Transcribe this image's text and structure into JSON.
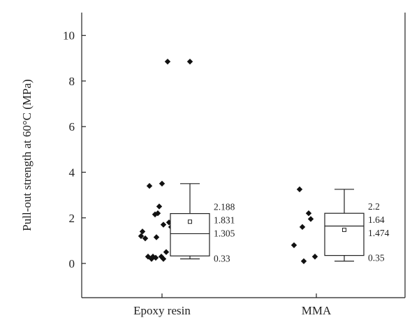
{
  "chart_data": {
    "type": "box",
    "title": "",
    "ylabel": "Pull-out strength at 60°C (MPa)",
    "xlabel": "",
    "ylim": [
      -1.5,
      11
    ],
    "yticks": [
      0,
      2,
      4,
      6,
      8,
      10
    ],
    "grid": false,
    "groups": [
      {
        "name": "Epoxy resin",
        "points": [
          [
            0.08,
            8.85
          ],
          [
            -0.3,
            1.2
          ],
          [
            -0.28,
            1.4
          ],
          [
            -0.24,
            1.1
          ],
          [
            -0.18,
            3.4
          ],
          [
            -0.2,
            0.3
          ],
          [
            -0.15,
            0.2
          ],
          [
            -0.13,
            0.3
          ],
          [
            -0.09,
            0.25
          ],
          [
            -0.1,
            2.15
          ],
          [
            -0.06,
            2.2
          ],
          [
            -0.04,
            2.5
          ],
          [
            -0.08,
            1.15
          ],
          [
            0.0,
            3.5
          ],
          [
            -0.01,
            0.3
          ],
          [
            0.02,
            0.2
          ],
          [
            0.06,
            0.5
          ],
          [
            0.1,
            1.8
          ],
          [
            0.13,
            1.6
          ],
          [
            0.02,
            1.7
          ]
        ],
        "box": {
          "q1": 0.33,
          "median": 1.305,
          "mean": 1.831,
          "q3": 2.188,
          "whisker_low": 0.2,
          "whisker_high": 3.5,
          "outliers": [
            8.85
          ]
        },
        "stat_labels": [
          "2.188",
          "1.831",
          "1.305",
          "0.33"
        ]
      },
      {
        "name": "MMA",
        "points": [
          [
            -0.32,
            0.8
          ],
          [
            -0.24,
            3.25
          ],
          [
            -0.2,
            1.6
          ],
          [
            -0.18,
            0.1
          ],
          [
            -0.11,
            2.2
          ],
          [
            -0.08,
            1.95
          ],
          [
            -0.02,
            0.3
          ]
        ],
        "box": {
          "q1": 0.35,
          "median": 1.64,
          "mean": 1.474,
          "q3": 2.2,
          "whisker_low": 0.1,
          "whisker_high": 3.25,
          "outliers": []
        },
        "stat_labels": [
          "2.2",
          "1.64",
          "1.474",
          "0.35"
        ]
      }
    ]
  }
}
